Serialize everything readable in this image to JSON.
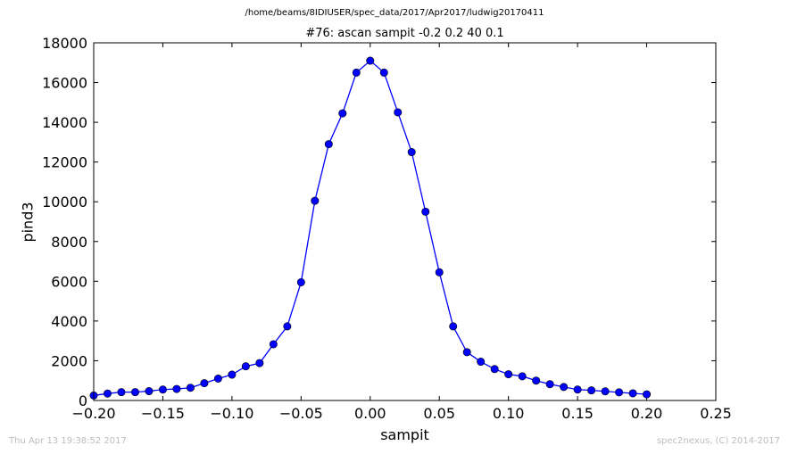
{
  "figure": {
    "suptitle": "/home/beams/8IDIUSER/spec_data/2017/Apr2017/ludwig20170411",
    "footer_left": "Thu Apr 13 19:38:52 2017",
    "footer_right": "spec2nexus, (C) 2014-2017"
  },
  "chart_data": {
    "type": "line",
    "title": "#76: ascan  sampit -0.2 0.2  40 0.1",
    "xlabel": "sampit",
    "ylabel": "pind3",
    "xlim": [
      -0.2,
      0.25
    ],
    "ylim": [
      0,
      18000
    ],
    "xticks": [
      -0.2,
      -0.15,
      -0.1,
      -0.05,
      0.0,
      0.05,
      0.1,
      0.15,
      0.2,
      0.25
    ],
    "xtick_labels": [
      "−0.20",
      "−0.15",
      "−0.10",
      "−0.05",
      "0.00",
      "0.05",
      "0.10",
      "0.15",
      "0.20",
      "0.25"
    ],
    "yticks": [
      0,
      2000,
      4000,
      6000,
      8000,
      10000,
      12000,
      14000,
      16000,
      18000
    ],
    "ytick_labels": [
      "0",
      "2000",
      "4000",
      "6000",
      "8000",
      "10000",
      "12000",
      "14000",
      "16000",
      "18000"
    ],
    "grid": false,
    "line_color": "#0000ff",
    "marker_color": "#0000ff",
    "series": [
      {
        "x": [
          -0.2,
          -0.19,
          -0.18,
          -0.17,
          -0.16,
          -0.15,
          -0.14,
          -0.13,
          -0.12,
          -0.11,
          -0.1,
          -0.09,
          -0.08,
          -0.07,
          -0.06,
          -0.05,
          -0.04,
          -0.03,
          -0.02,
          -0.01,
          0.0,
          0.01,
          0.02,
          0.03,
          0.04,
          0.05,
          0.06,
          0.07,
          0.08,
          0.09,
          0.1,
          0.11,
          0.12,
          0.13,
          0.14,
          0.15,
          0.16,
          0.17,
          0.18,
          0.19,
          0.2
        ],
        "y": [
          250,
          350,
          420,
          420,
          470,
          550,
          580,
          640,
          870,
          1100,
          1300,
          1720,
          1880,
          2830,
          3730,
          5950,
          10050,
          12900,
          14450,
          16500,
          17100,
          16500,
          14500,
          12500,
          9500,
          6450,
          3730,
          2430,
          1950,
          1580,
          1320,
          1220,
          1000,
          820,
          680,
          550,
          510,
          460,
          410,
          360,
          310
        ]
      }
    ]
  }
}
